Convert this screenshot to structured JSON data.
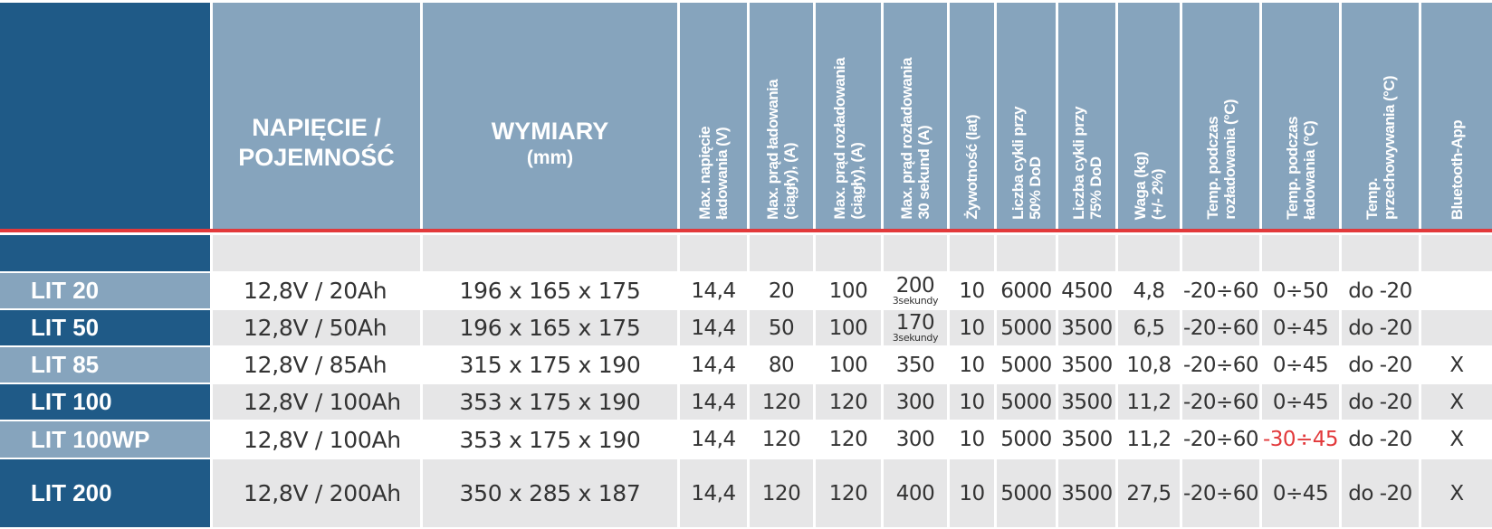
{
  "header": {
    "voltage_capacity": "NAPIĘCIE /\nPOJEMNOŚĆ",
    "dimensions": "WYMIARY",
    "dimensions_unit": "(mm)",
    "max_charge_voltage": "Max. napięcie\nładowania (V)",
    "max_charge_current": "Max. prąd ładowania\n(ciągły), (A)",
    "max_discharge_current": "Max. prąd rozładowania\n(ciągły), (A)",
    "max_discharge_current_30s": "Max. prąd rozładowania\n30 sekund (A)",
    "lifetime": "Żywotność (lat)",
    "cycles_50": "Liczba cykli przy\n50% DoD",
    "cycles_75": "Liczba cykli przy\n75% DoD",
    "weight": "Waga (kg)\n(+/- 2%)",
    "temp_discharge": "Temp. podczas\nrozładowania (°C)",
    "temp_charge": "Temp. podczas\nładowania (°C)",
    "temp_storage": "Temp.\nprzechowywania (°C)",
    "bluetooth": "Bluetooth-App"
  },
  "rows": [
    {
      "name": "LIT 20",
      "voltage": "12,8V / 20Ah",
      "dims": "196 x 165 x 175",
      "max_v": "14,4",
      "chg_a": "20",
      "dis_a": "100",
      "dis_30s": "200",
      "dis_30s_note": "3sekundy",
      "life": "10",
      "c50": "6000",
      "c75": "4500",
      "weight": "4,8",
      "t_dis": "-20÷60",
      "t_chg": "0÷50",
      "t_store": "do -20",
      "bt": ""
    },
    {
      "name": "LIT 50",
      "voltage": "12,8V / 50Ah",
      "dims": "196 x 165 x 175",
      "max_v": "14,4",
      "chg_a": "50",
      "dis_a": "100",
      "dis_30s": "170",
      "dis_30s_note": "3sekundy",
      "life": "10",
      "c50": "5000",
      "c75": "3500",
      "weight": "6,5",
      "t_dis": "-20÷60",
      "t_chg": "0÷45",
      "t_store": "do -20",
      "bt": ""
    },
    {
      "name": "LIT 85",
      "voltage": "12,8V / 85Ah",
      "dims": "315 x 175 x 190",
      "max_v": "14,4",
      "chg_a": "80",
      "dis_a": "100",
      "dis_30s": "350",
      "dis_30s_note": "",
      "life": "10",
      "c50": "5000",
      "c75": "3500",
      "weight": "10,8",
      "t_dis": "-20÷60",
      "t_chg": "0÷45",
      "t_store": "do -20",
      "bt": "X"
    },
    {
      "name": "LIT 100",
      "voltage": "12,8V / 100Ah",
      "dims": "353 x 175 x 190",
      "max_v": "14,4",
      "chg_a": "120",
      "dis_a": "120",
      "dis_30s": "300",
      "dis_30s_note": "",
      "life": "10",
      "c50": "5000",
      "c75": "3500",
      "weight": "11,2",
      "t_dis": "-20÷60",
      "t_chg": "0÷45",
      "t_store": "do -20",
      "bt": "X"
    },
    {
      "name": "LIT 100WP",
      "voltage": "12,8V / 100Ah",
      "dims": "353 x 175 x 190",
      "max_v": "14,4",
      "chg_a": "120",
      "dis_a": "120",
      "dis_30s": "300",
      "dis_30s_note": "",
      "life": "10",
      "c50": "5000",
      "c75": "3500",
      "weight": "11,2",
      "t_dis": "-20÷60",
      "t_chg": "-30÷45",
      "t_chg_highlight": true,
      "t_store": "do -20",
      "bt": "X"
    },
    {
      "name": "LIT 200",
      "voltage": "12,8V / 200Ah",
      "dims": "350 x 285 x 187",
      "max_v": "14,4",
      "chg_a": "120",
      "dis_a": "120",
      "dis_30s": "400",
      "dis_30s_note": "",
      "life": "10",
      "c50": "5000",
      "c75": "3500",
      "weight": "27,5",
      "t_dis": "-20÷60",
      "t_chg": "0÷45",
      "t_store": "do -20",
      "bt": "X"
    }
  ],
  "colors": {
    "dark_blue": "#1f5a87",
    "light_blue": "#86a4bd",
    "accent_red": "#e2393b",
    "row_grey": "#e6e6e7"
  }
}
